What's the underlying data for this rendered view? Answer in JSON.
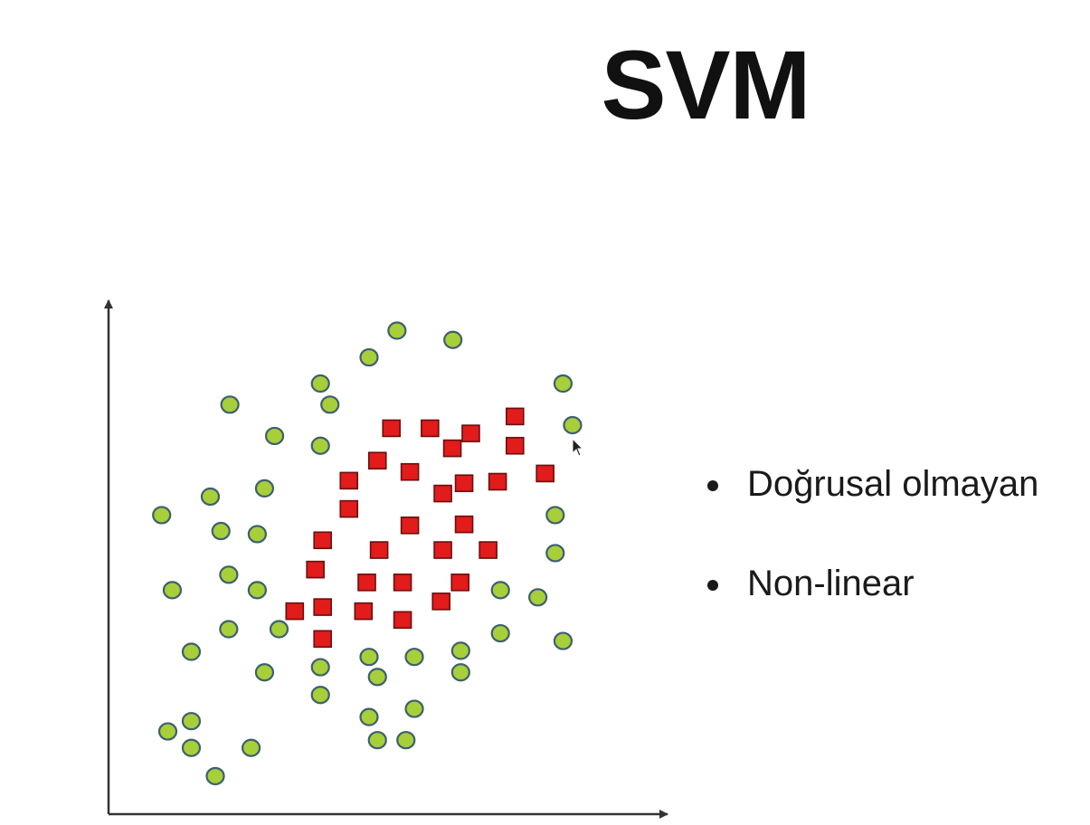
{
  "slide": {
    "title": "SVM",
    "bullets": [
      "Doğrusal olmayan",
      "Non-linear"
    ]
  },
  "colors": {
    "circle_fill": "#a6cf3a",
    "circle_stroke": "#3e5f6e",
    "square_fill": "#e21b1b",
    "square_stroke": "#6b0f0f",
    "axis": "#333333"
  },
  "chart_data": {
    "type": "scatter",
    "title": "",
    "xlabel": "",
    "ylabel": "",
    "grid": false,
    "xlim": [
      0,
      100
    ],
    "ylim": [
      0,
      100
    ],
    "series": [
      {
        "marker": "circle",
        "color": "#a6cf3a",
        "points": [
          [
            51.6,
            94.1
          ],
          [
            61.6,
            92.3
          ],
          [
            46.6,
            88.9
          ],
          [
            37.9,
            83.8
          ],
          [
            81.3,
            83.8
          ],
          [
            21.7,
            79.7
          ],
          [
            39.6,
            79.7
          ],
          [
            83.0,
            75.7
          ],
          [
            29.7,
            73.6
          ],
          [
            37.9,
            71.7
          ],
          [
            27.9,
            63.4
          ],
          [
            18.2,
            61.8
          ],
          [
            9.5,
            58.2
          ],
          [
            79.9,
            58.2
          ],
          [
            20.1,
            55.1
          ],
          [
            26.6,
            54.5
          ],
          [
            79.9,
            50.8
          ],
          [
            21.5,
            46.6
          ],
          [
            11.4,
            43.6
          ],
          [
            26.6,
            43.6
          ],
          [
            70.1,
            43.6
          ],
          [
            76.8,
            42.2
          ],
          [
            21.5,
            36.0
          ],
          [
            30.5,
            36.0
          ],
          [
            70.1,
            35.2
          ],
          [
            81.3,
            33.7
          ],
          [
            14.8,
            31.6
          ],
          [
            46.6,
            30.6
          ],
          [
            54.7,
            30.6
          ],
          [
            63.0,
            31.8
          ],
          [
            27.9,
            27.6
          ],
          [
            37.9,
            28.6
          ],
          [
            48.1,
            26.7
          ],
          [
            63.0,
            27.6
          ],
          [
            37.9,
            23.2
          ],
          [
            14.8,
            18.1
          ],
          [
            46.6,
            18.9
          ],
          [
            54.7,
            20.5
          ],
          [
            10.6,
            16.1
          ],
          [
            14.8,
            12.9
          ],
          [
            25.5,
            12.9
          ],
          [
            48.1,
            14.4
          ],
          [
            53.2,
            14.4
          ],
          [
            19.1,
            7.4
          ]
        ]
      },
      {
        "marker": "square",
        "color": "#e21b1b",
        "points": [
          [
            72.7,
            77.4
          ],
          [
            50.6,
            75.1
          ],
          [
            57.5,
            75.1
          ],
          [
            64.8,
            74.1
          ],
          [
            61.5,
            71.2
          ],
          [
            72.7,
            71.7
          ],
          [
            48.1,
            68.8
          ],
          [
            53.9,
            66.6
          ],
          [
            78.1,
            66.3
          ],
          [
            43.0,
            64.9
          ],
          [
            63.6,
            64.4
          ],
          [
            69.6,
            64.7
          ],
          [
            59.8,
            62.4
          ],
          [
            43.0,
            59.4
          ],
          [
            53.9,
            56.2
          ],
          [
            63.6,
            56.4
          ],
          [
            38.3,
            53.3
          ],
          [
            48.4,
            51.4
          ],
          [
            59.8,
            51.4
          ],
          [
            67.9,
            51.4
          ],
          [
            37.0,
            47.6
          ],
          [
            46.2,
            45.1
          ],
          [
            52.6,
            45.1
          ],
          [
            62.9,
            45.1
          ],
          [
            38.3,
            40.3
          ],
          [
            45.6,
            39.5
          ],
          [
            33.3,
            39.5
          ],
          [
            52.6,
            37.8
          ],
          [
            59.5,
            41.4
          ],
          [
            38.3,
            34.1
          ]
        ]
      }
    ]
  }
}
